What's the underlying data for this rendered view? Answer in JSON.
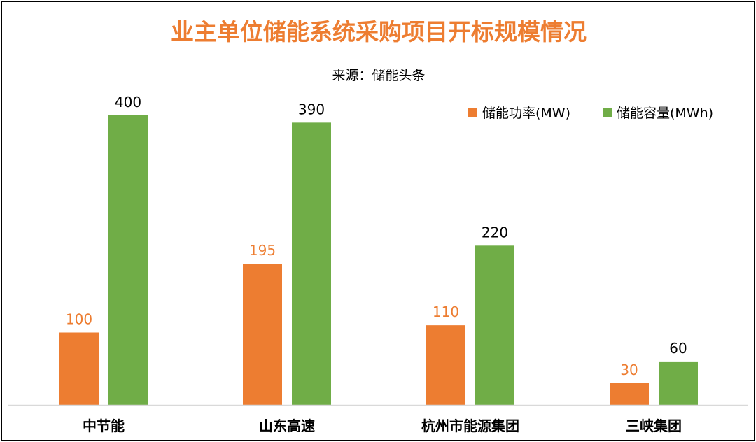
{
  "chart_data": {
    "type": "bar",
    "title": "业主单位储能系统采购项目开标规模情况",
    "subtitle": "来源：储能头条",
    "categories": [
      "中节能",
      "山东高速",
      "杭州市能源集团",
      "三峡集团"
    ],
    "series": [
      {
        "name": "储能功率(MW)",
        "values": [
          100,
          195,
          110,
          30
        ],
        "color": "#ED7D31"
      },
      {
        "name": "储能容量(MWh)",
        "values": [
          400,
          390,
          220,
          60
        ],
        "color": "#70AD47"
      }
    ],
    "ylim": [
      0,
      400
    ],
    "grid": false,
    "legend": "top-right",
    "data_labels": true
  }
}
